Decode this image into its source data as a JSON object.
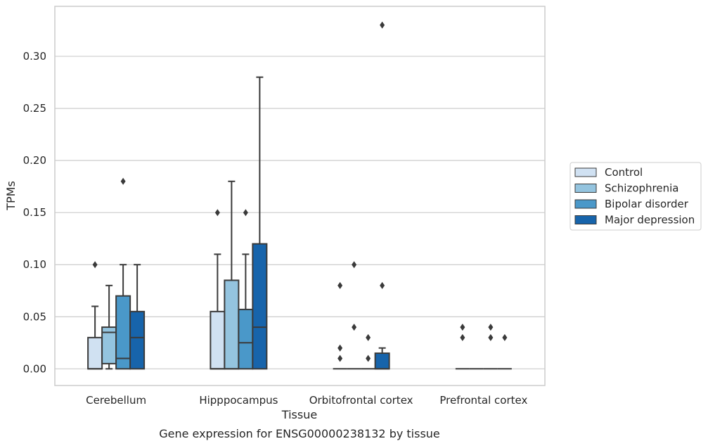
{
  "chart_data": {
    "type": "box",
    "title": "",
    "caption": "Gene expression for ENSG00000238132 by tissue",
    "xlabel": "Tissue",
    "ylabel": "TPMs",
    "ylim": [
      -0.016,
      0.348
    ],
    "yticks": [
      0.0,
      0.05,
      0.1,
      0.15,
      0.2,
      0.25,
      0.3
    ],
    "ytick_labels": [
      "0.00",
      "0.05",
      "0.10",
      "0.15",
      "0.20",
      "0.25",
      "0.30"
    ],
    "grid": "horizontal",
    "legend_position": "right",
    "categories": [
      "Cerebellum",
      "Hipppocampus",
      "Orbitofrontal cortex",
      "Prefrontal cortex"
    ],
    "series": [
      {
        "name": "Control",
        "color": "#d0e1f2",
        "boxes": [
          {
            "whislo": 0,
            "q1": 0,
            "med": 0,
            "q3": 0.03,
            "whishi": 0.06,
            "fliers": [
              0.1
            ]
          },
          {
            "whislo": 0,
            "q1": 0,
            "med": 0,
            "q3": 0.055,
            "whishi": 0.11,
            "fliers": [
              0.15
            ]
          },
          {
            "whislo": 0,
            "q1": 0,
            "med": 0,
            "q3": 0,
            "whishi": 0,
            "fliers": [
              0.01,
              0.02,
              0.08
            ]
          },
          {
            "whislo": 0,
            "q1": 0,
            "med": 0,
            "q3": 0,
            "whishi": 0,
            "fliers": [
              0.03,
              0.04
            ]
          }
        ]
      },
      {
        "name": "Schizophrenia",
        "color": "#94c4df",
        "boxes": [
          {
            "whislo": 0,
            "q1": 0.005,
            "med": 0.035,
            "q3": 0.04,
            "whishi": 0.08,
            "fliers": []
          },
          {
            "whislo": 0,
            "q1": 0,
            "med": 0,
            "q3": 0.085,
            "whishi": 0.18,
            "fliers": []
          },
          {
            "whislo": 0,
            "q1": 0,
            "med": 0,
            "q3": 0,
            "whishi": 0,
            "fliers": [
              0.04,
              0.1
            ]
          },
          {
            "whislo": 0,
            "q1": 0,
            "med": 0,
            "q3": 0,
            "whishi": 0,
            "fliers": []
          }
        ]
      },
      {
        "name": "Bipolar disorder",
        "color": "#4a98c9",
        "boxes": [
          {
            "whislo": 0,
            "q1": 0,
            "med": 0.01,
            "q3": 0.07,
            "whishi": 0.1,
            "fliers": [
              0.18
            ]
          },
          {
            "whislo": 0,
            "q1": 0,
            "med": 0.025,
            "q3": 0.057,
            "whishi": 0.11,
            "fliers": [
              0.15
            ]
          },
          {
            "whislo": 0,
            "q1": 0,
            "med": 0,
            "q3": 0,
            "whishi": 0,
            "fliers": [
              0.01,
              0.03
            ]
          },
          {
            "whislo": 0,
            "q1": 0,
            "med": 0,
            "q3": 0,
            "whishi": 0,
            "fliers": [
              0.03,
              0.04
            ]
          }
        ]
      },
      {
        "name": "Major depression",
        "color": "#1764ab",
        "boxes": [
          {
            "whislo": 0,
            "q1": 0,
            "med": 0.03,
            "q3": 0.055,
            "whishi": 0.1,
            "fliers": []
          },
          {
            "whislo": 0,
            "q1": 0,
            "med": 0.04,
            "q3": 0.12,
            "whishi": 0.28,
            "fliers": []
          },
          {
            "whislo": 0,
            "q1": 0,
            "med": 0,
            "q3": 0.015,
            "whishi": 0.02,
            "fliers": [
              0.08,
              0.33
            ]
          },
          {
            "whislo": 0,
            "q1": 0,
            "med": 0,
            "q3": 0,
            "whishi": 0,
            "fliers": [
              0.03
            ]
          }
        ]
      }
    ]
  }
}
